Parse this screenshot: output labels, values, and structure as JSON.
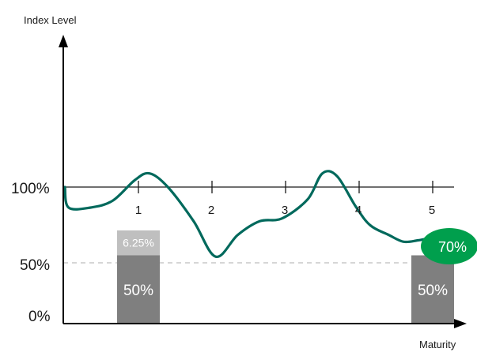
{
  "chart_data": {
    "type": "line",
    "ylabel": "Index Level",
    "xlabel": "Maturity",
    "xlim": [
      0,
      5.3
    ],
    "ylim": [
      0,
      1.8
    ],
    "y_ticks": [
      {
        "value": 1.0,
        "label": "100%"
      },
      {
        "value": 0.5,
        "label": "50%"
      },
      {
        "value": 0.0,
        "label": "0%"
      }
    ],
    "x_ticks": [
      "1",
      "2",
      "3",
      "4",
      "5"
    ],
    "reference_line": {
      "value": 1.0,
      "style": "solid"
    },
    "barrier_line": {
      "value": 0.5,
      "style": "dashed"
    },
    "bars": [
      {
        "x": 1,
        "value": 0.5,
        "label": "50%",
        "top_value": 0.6825,
        "top_label": "6.25%",
        "color": "#7f7f7f",
        "top_color": "#bfbfbf"
      },
      {
        "x": 5,
        "value": 0.5,
        "label": "50%",
        "color": "#7f7f7f"
      }
    ],
    "series": [
      {
        "color": "#00695c",
        "x": [
          0.0,
          0.05,
          0.35,
          0.65,
          0.95,
          1.15,
          1.4,
          1.75,
          2.05,
          2.35,
          2.65,
          2.95,
          3.3,
          3.5,
          3.7,
          3.95,
          4.15,
          4.4,
          4.6,
          4.8,
          5.0,
          5.15
        ],
        "y": [
          1.0,
          0.85,
          0.85,
          0.9,
          1.05,
          1.1,
          1.0,
          0.75,
          0.49,
          0.65,
          0.75,
          0.77,
          0.91,
          1.1,
          1.08,
          0.86,
          0.72,
          0.65,
          0.6,
          0.61,
          0.63,
          0.63
        ]
      }
    ],
    "end_annotation": {
      "label": "70%",
      "color": "#009f4d"
    }
  }
}
